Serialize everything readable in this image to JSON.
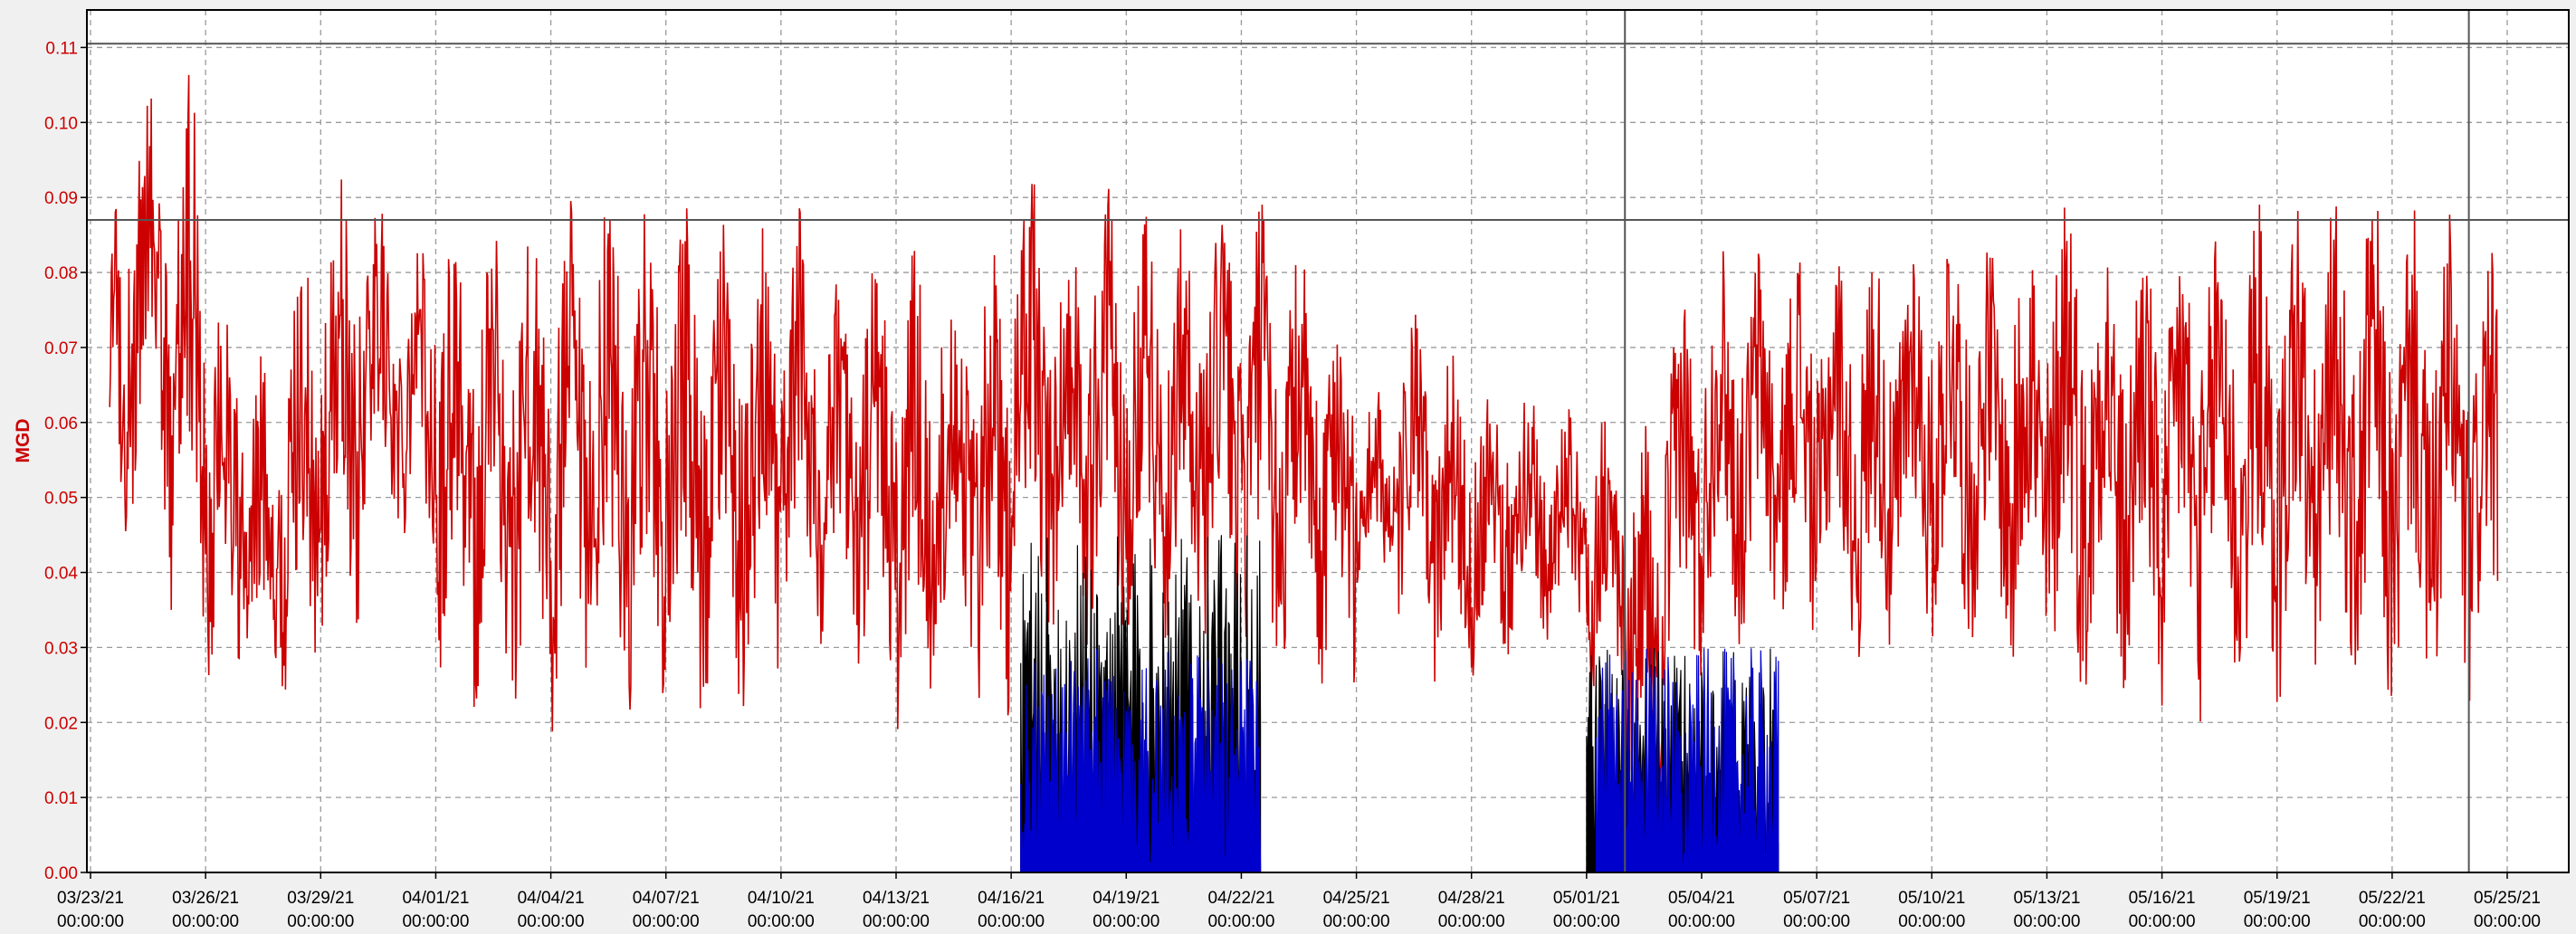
{
  "chart_data": {
    "type": "line",
    "title": "",
    "ylabel": "MGD",
    "xlabel": "",
    "ylim": [
      0,
      0.115
    ],
    "xlim": [
      "03/23/21 00:00:00",
      "05/25/21 00:00:00"
    ],
    "grid": true,
    "grid_style": "dashed",
    "yticks": [
      0.0,
      0.01,
      0.02,
      0.03,
      0.04,
      0.05,
      0.06,
      0.07,
      0.08,
      0.09,
      0.1,
      0.11
    ],
    "ytick_labels": [
      "0.00",
      "0.01",
      "0.02",
      "0.03",
      "0.04",
      "0.05",
      "0.06",
      "0.07",
      "0.08",
      "0.09",
      "0.10",
      "0.11"
    ],
    "xticks": [
      {
        "date": "03/23/21",
        "time": "00:00:00"
      },
      {
        "date": "03/26/21",
        "time": "00:00:00"
      },
      {
        "date": "03/29/21",
        "time": "00:00:00"
      },
      {
        "date": "04/01/21",
        "time": "00:00:00"
      },
      {
        "date": "04/04/21",
        "time": "00:00:00"
      },
      {
        "date": "04/07/21",
        "time": "00:00:00"
      },
      {
        "date": "04/10/21",
        "time": "00:00:00"
      },
      {
        "date": "04/13/21",
        "time": "00:00:00"
      },
      {
        "date": "04/16/21",
        "time": "00:00:00"
      },
      {
        "date": "04/19/21",
        "time": "00:00:00"
      },
      {
        "date": "04/22/21",
        "time": "00:00:00"
      },
      {
        "date": "04/25/21",
        "time": "00:00:00"
      },
      {
        "date": "04/28/21",
        "time": "00:00:00"
      },
      {
        "date": "05/01/21",
        "time": "00:00:00"
      },
      {
        "date": "05/04/21",
        "time": "00:00:00"
      },
      {
        "date": "05/07/21",
        "time": "00:00:00"
      },
      {
        "date": "05/10/21",
        "time": "00:00:00"
      },
      {
        "date": "05/13/21",
        "time": "00:00:00"
      },
      {
        "date": "05/16/21",
        "time": "00:00:00"
      },
      {
        "date": "05/19/21",
        "time": "00:00:00"
      },
      {
        "date": "05/22/21",
        "time": "00:00:00"
      },
      {
        "date": "05/25/21",
        "time": "00:00:00"
      }
    ],
    "reference_lines": {
      "horizontal": [
        0.087,
        0.1105
      ],
      "vertical": [
        "05/02/21 00:00:00",
        "05/24/21 00:00:00"
      ]
    },
    "series": [
      {
        "color": "#cc0000",
        "start": "03/23/21 12:00:00",
        "end": "05/24/21 18:00:00",
        "daily_envelope": [
          [
            "03/23",
            0.04,
            0.095
          ],
          [
            "03/24",
            0.045,
            0.105
          ],
          [
            "03/25",
            0.03,
            0.112
          ],
          [
            "03/26",
            0.02,
            0.08
          ],
          [
            "03/27",
            0.02,
            0.07
          ],
          [
            "03/28",
            0.02,
            0.085
          ],
          [
            "03/29",
            0.028,
            0.093
          ],
          [
            "03/30",
            0.045,
            0.09
          ],
          [
            "03/31",
            0.04,
            0.088
          ],
          [
            "04/01",
            0.022,
            0.09
          ],
          [
            "04/02",
            0.02,
            0.09
          ],
          [
            "04/03",
            0.02,
            0.088
          ],
          [
            "04/04",
            0.015,
            0.09
          ],
          [
            "04/05",
            0.02,
            0.093
          ],
          [
            "04/06",
            0.02,
            0.09
          ],
          [
            "04/07",
            0.017,
            0.09
          ],
          [
            "04/08",
            0.02,
            0.088
          ],
          [
            "04/09",
            0.02,
            0.088
          ],
          [
            "04/10",
            0.03,
            0.09
          ],
          [
            "04/11",
            0.03,
            0.08
          ],
          [
            "04/12",
            0.02,
            0.086
          ],
          [
            "04/13",
            0.015,
            0.085
          ],
          [
            "04/14",
            0.025,
            0.085
          ],
          [
            "04/15",
            0.015,
            0.085
          ],
          [
            "04/16",
            0.03,
            0.095
          ],
          [
            "04/17",
            0.03,
            0.09
          ],
          [
            "04/18",
            0.03,
            0.092
          ],
          [
            "04/19",
            0.03,
            0.09
          ],
          [
            "04/20",
            0.03,
            0.088
          ],
          [
            "04/21",
            0.03,
            0.09
          ],
          [
            "04/22",
            0.025,
            0.09
          ],
          [
            "04/23",
            0.025,
            0.085
          ],
          [
            "04/24",
            0.022,
            0.08
          ],
          [
            "04/25",
            0.035,
            0.065
          ],
          [
            "04/26",
            0.03,
            0.075
          ],
          [
            "04/27",
            0.025,
            0.07
          ],
          [
            "04/28",
            0.025,
            0.07
          ],
          [
            "04/29",
            0.03,
            0.065
          ],
          [
            "04/30",
            0.03,
            0.062
          ],
          [
            "05/01",
            0.02,
            0.062
          ],
          [
            "05/02",
            0.0,
            0.06
          ],
          [
            "05/03",
            0.02,
            0.08
          ],
          [
            "05/04",
            0.03,
            0.085
          ],
          [
            "05/05",
            0.03,
            0.085
          ],
          [
            "05/06",
            0.03,
            0.085
          ],
          [
            "05/07",
            0.03,
            0.085
          ],
          [
            "05/08",
            0.025,
            0.085
          ],
          [
            "05/09",
            0.03,
            0.088
          ],
          [
            "05/10",
            0.03,
            0.09
          ],
          [
            "05/11",
            0.03,
            0.085
          ],
          [
            "05/12",
            0.02,
            0.092
          ],
          [
            "05/13",
            0.02,
            0.097
          ],
          [
            "05/14",
            0.022,
            0.09
          ],
          [
            "05/15",
            0.02,
            0.088
          ],
          [
            "05/16",
            0.017,
            0.09
          ],
          [
            "05/17",
            0.02,
            0.093
          ],
          [
            "05/18",
            0.02,
            0.09
          ],
          [
            "05/19",
            0.02,
            0.093
          ],
          [
            "05/20",
            0.025,
            0.09
          ],
          [
            "05/21",
            0.02,
            0.092
          ],
          [
            "05/22",
            0.02,
            0.09
          ],
          [
            "05/23",
            0.02,
            0.088
          ],
          [
            "05/24",
            0.02,
            0.085
          ]
        ]
      },
      {
        "color": "#000000",
        "segments": [
          {
            "start": "04/16/21 06:00:00",
            "end": "04/22/21 12:00:00",
            "low": 0.0,
            "high": 0.045
          },
          {
            "start": "05/01/21 00:00:00",
            "end": "05/06/21 00:00:00",
            "low": 0.0,
            "high": 0.03
          }
        ]
      },
      {
        "color": "#0000cc",
        "segments": [
          {
            "start": "04/16/21 06:00:00",
            "end": "04/22/21 12:00:00",
            "low": 0.0,
            "high": 0.03
          },
          {
            "start": "05/01/21 06:00:00",
            "end": "05/06/21 00:00:00",
            "low": 0.0,
            "high": 0.03
          }
        ]
      }
    ]
  }
}
